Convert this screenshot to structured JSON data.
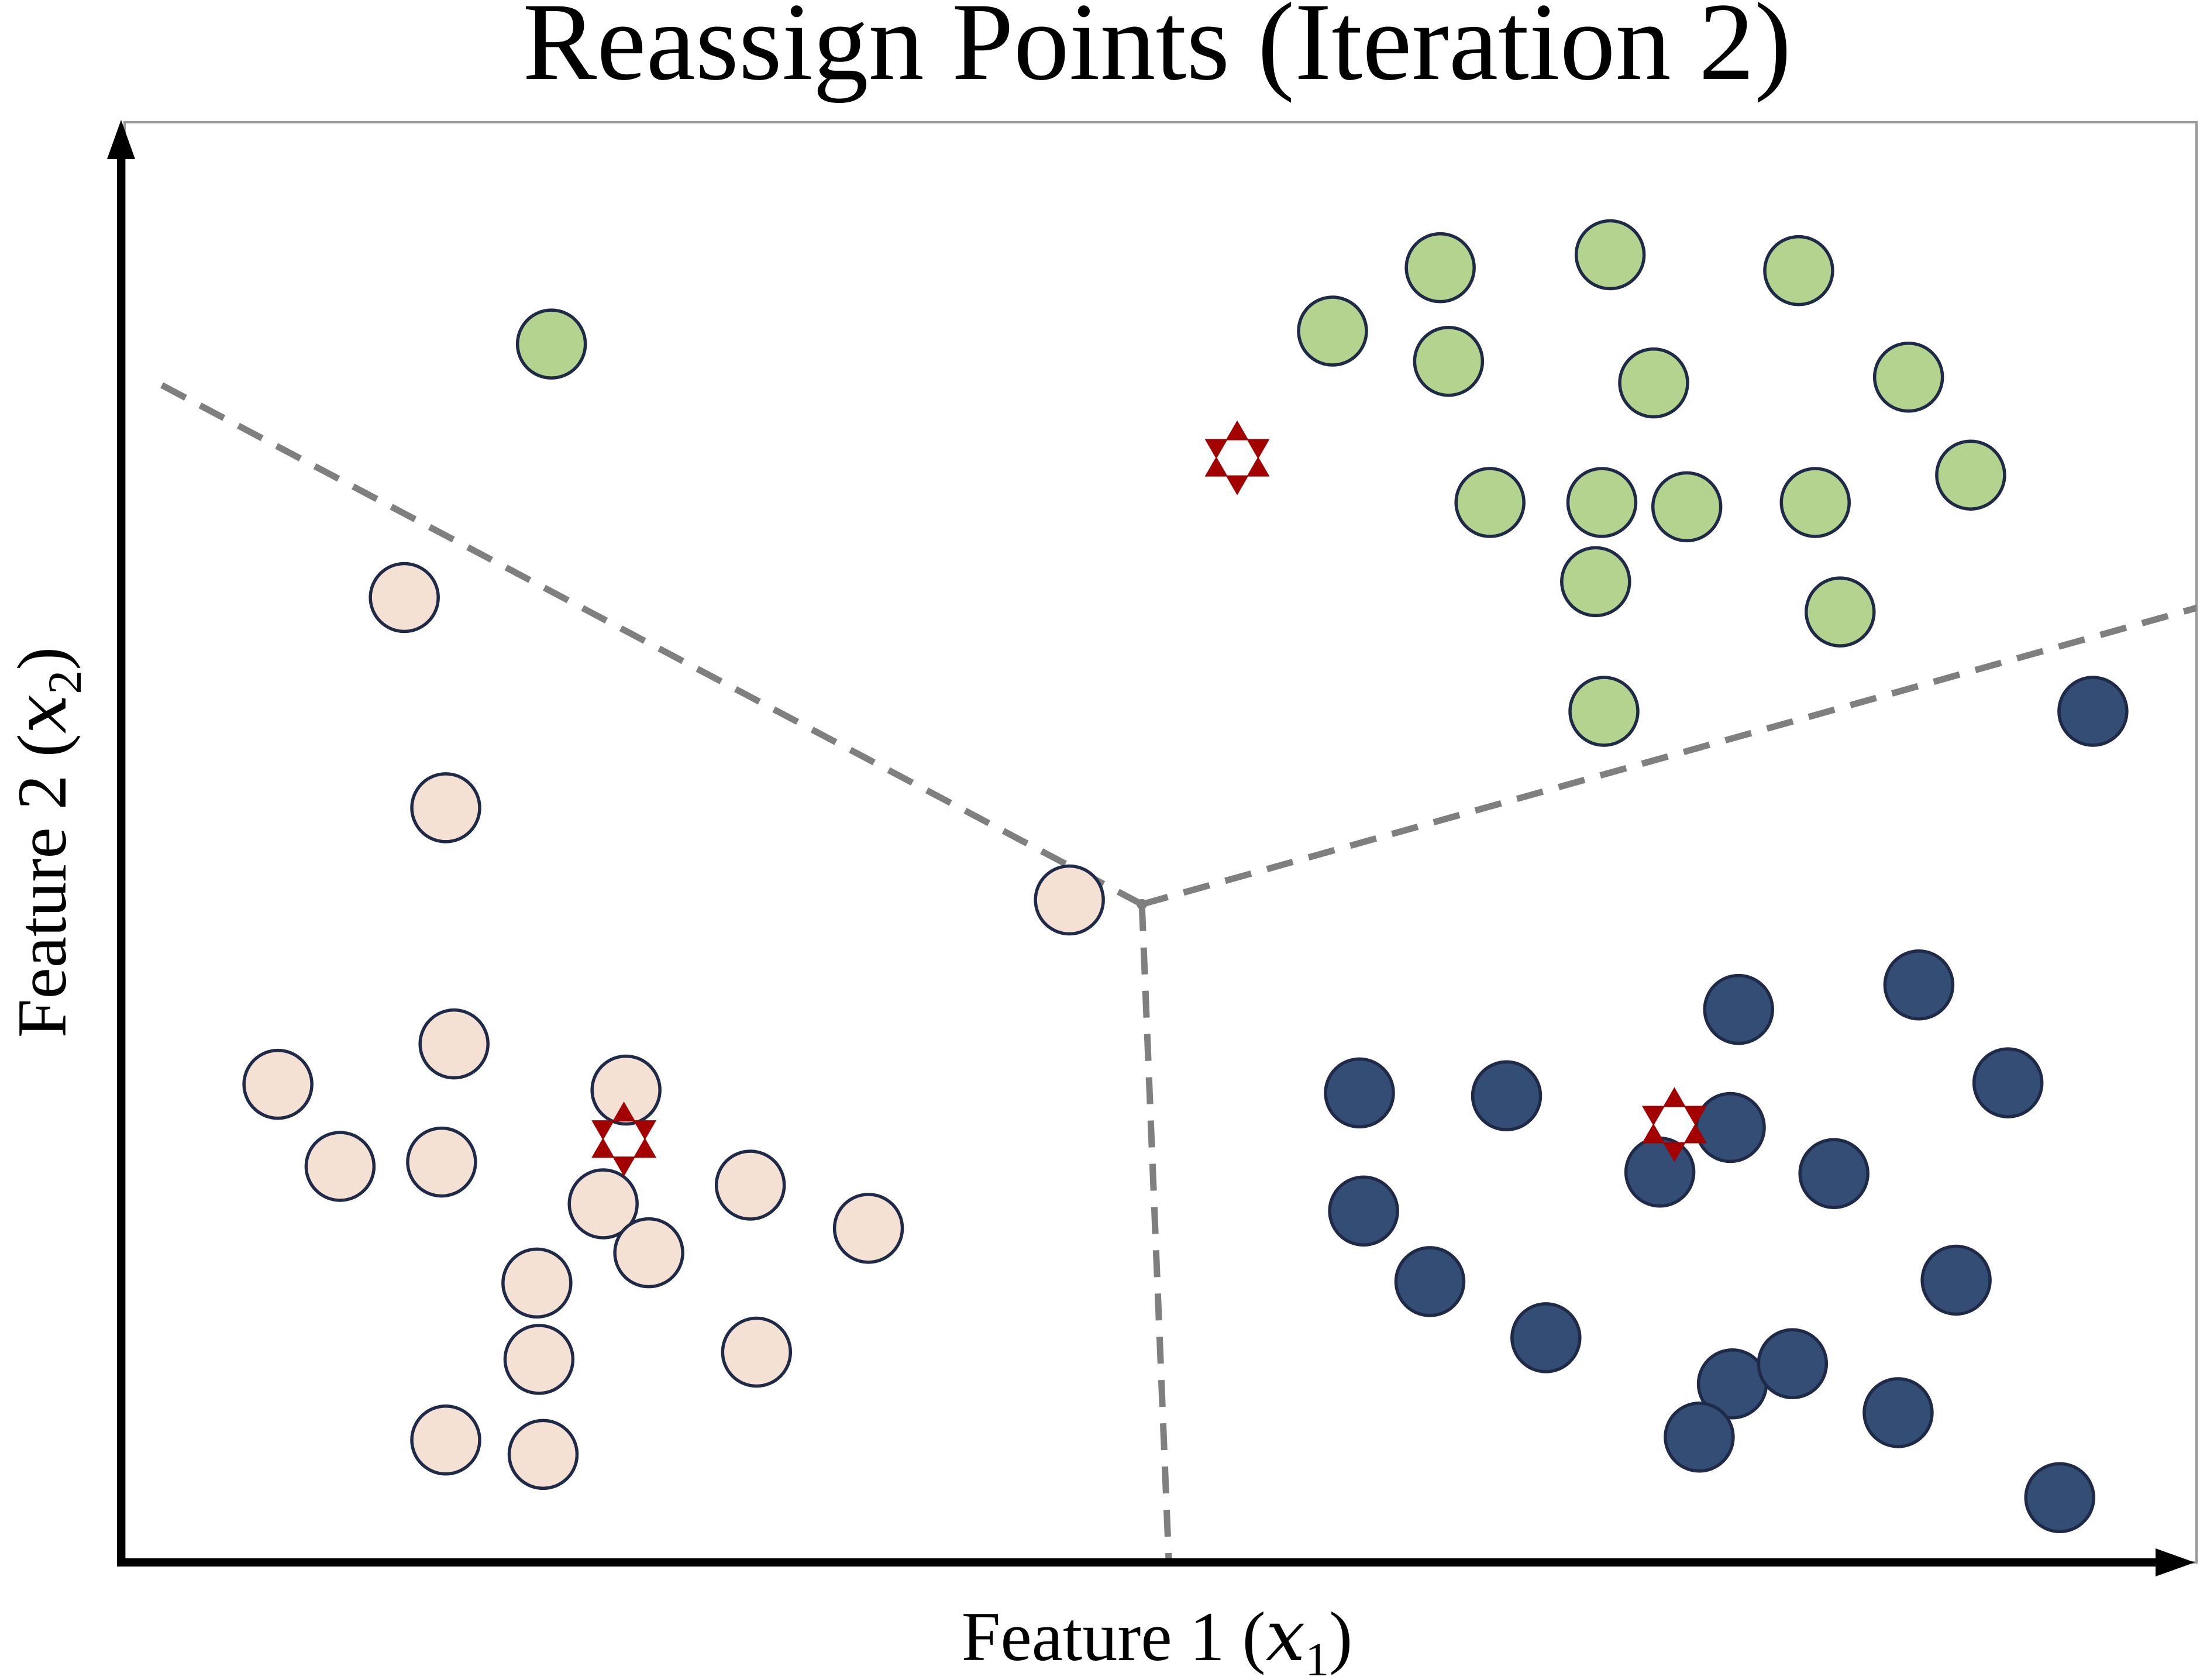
{
  "chart_data": {
    "type": "scatter",
    "title": "Reassign Points (Iteration 2)",
    "xlabel": {
      "text": "Feature 1 (",
      "var": "x",
      "sub": "1",
      "close": ")"
    },
    "ylabel": {
      "text": "Feature 2 (",
      "var": "x",
      "sub": "2",
      "close": ")"
    },
    "xlim": [
      0,
      100
    ],
    "ylim": [
      0,
      100
    ],
    "grid": false,
    "colors": {
      "cluster_1": "#f5e1d4",
      "cluster_2": "#b3d38f",
      "cluster_3": "#334d74",
      "point_edge": "#1e2a47",
      "centroid": "#a30000",
      "boundary": "#7f7f7f",
      "axis": "#000000",
      "frame": "#9a9a9a"
    },
    "series": [
      {
        "cluster": 1,
        "points": [
          [
            13.5,
            67
          ],
          [
            15.5,
            52.4
          ],
          [
            15.9,
            36
          ],
          [
            7.4,
            33.2
          ],
          [
            10.4,
            27.5
          ],
          [
            15.3,
            27.8
          ],
          [
            24.2,
            32.8
          ],
          [
            23.1,
            24.9
          ],
          [
            30.2,
            26.2
          ],
          [
            35.9,
            23.2
          ],
          [
            19.9,
            19.4
          ],
          [
            25.3,
            21.5
          ],
          [
            20,
            14.1
          ],
          [
            30.5,
            14.6
          ],
          [
            15.5,
            8.5
          ],
          [
            20.2,
            7.5
          ],
          [
            45.6,
            46
          ]
        ]
      },
      {
        "cluster": 2,
        "points": [
          [
            20.6,
            84.6
          ],
          [
            58.3,
            85.5
          ],
          [
            63.5,
            89.9
          ],
          [
            71.7,
            90.8
          ],
          [
            80.8,
            89.7
          ],
          [
            63.9,
            83.4
          ],
          [
            73.8,
            81.9
          ],
          [
            86.1,
            82.3
          ],
          [
            65.9,
            73.6
          ],
          [
            71.3,
            73.6
          ],
          [
            75.4,
            73.3
          ],
          [
            81.6,
            73.6
          ],
          [
            89.1,
            75.5
          ],
          [
            71,
            68.1
          ],
          [
            82.8,
            66
          ],
          [
            71.4,
            59.1
          ]
        ]
      },
      {
        "cluster": 3,
        "points": [
          [
            95,
            59.1
          ],
          [
            77.9,
            38.4
          ],
          [
            86.6,
            40.1
          ],
          [
            59.6,
            32.6
          ],
          [
            66.7,
            32.4
          ],
          [
            77.5,
            30.2
          ],
          [
            90.9,
            33.3
          ],
          [
            74.1,
            27.1
          ],
          [
            82.5,
            27
          ],
          [
            59.8,
            24.4
          ],
          [
            63,
            19.5
          ],
          [
            68.6,
            15.6
          ],
          [
            77.6,
            12.4
          ],
          [
            80.5,
            13.8
          ],
          [
            88.4,
            19.6
          ],
          [
            85.6,
            10.4
          ],
          [
            76,
            8.7
          ],
          [
            93.4,
            4.5
          ]
        ]
      }
    ],
    "centroids": [
      {
        "cluster": 1,
        "x": 24.1,
        "y": 29.4
      },
      {
        "cluster": 2,
        "x": 53.7,
        "y": 76.7
      },
      {
        "cluster": 3,
        "x": 74.8,
        "y": 30.4
      }
    ],
    "decision_boundaries": {
      "junction": [
        49.1,
        45.7
      ],
      "ends": [
        [
          1.2,
          82.2
        ],
        [
          100.8,
          66.6
        ],
        [
          50.4,
          0
        ]
      ]
    }
  }
}
